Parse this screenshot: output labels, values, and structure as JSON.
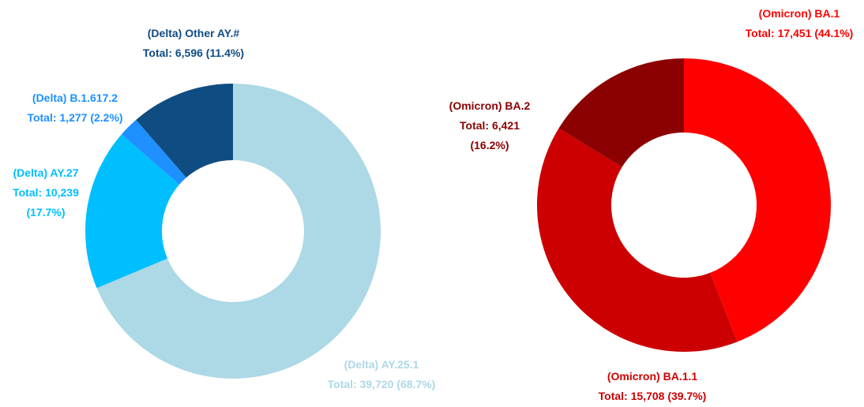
{
  "chart_data": [
    {
      "type": "donut",
      "categories": [
        "(Delta) AY.25.1",
        "(Delta) AY.27",
        "(Delta) B.1.617.2",
        "(Delta) Other AY.#"
      ],
      "values": [
        39720,
        10239,
        1277,
        6596
      ],
      "value_labels": [
        "Total: 39,720 (68.7%)",
        "Total: 10,239 (17.7%)",
        "Total: 1,277 (2.2%)",
        "Total: 6,596 (11.4%)"
      ],
      "colors": [
        "#add8e6",
        "#00bfff",
        "#1e90ff",
        "#0f4c81"
      ]
    },
    {
      "type": "donut",
      "categories": [
        "(Omicron) BA.1",
        "(Omicron) BA.1.1",
        "(Omicron) BA.2"
      ],
      "values": [
        17451,
        15708,
        6421
      ],
      "value_labels": [
        "Total: 17,451 (44.1%)",
        "Total: 15,708 (39.7%)",
        "Total: 6,421 (16.2%)"
      ],
      "colors": [
        "#ff0000",
        "#cc0000",
        "#8b0000"
      ]
    }
  ]
}
